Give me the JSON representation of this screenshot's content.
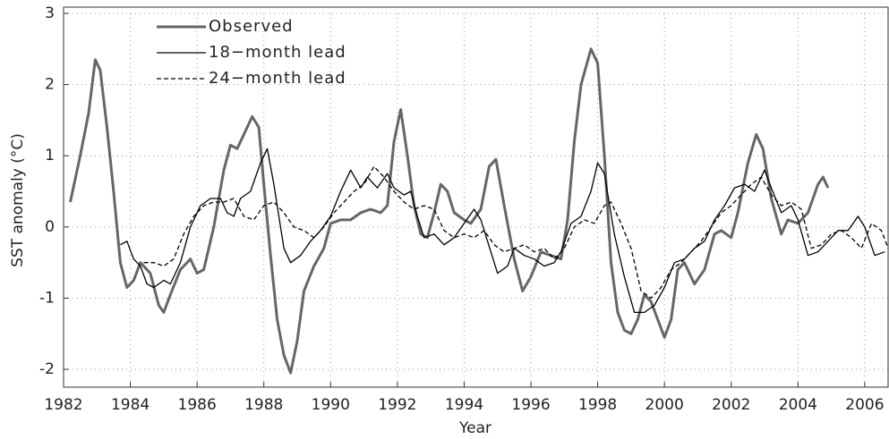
{
  "chart_data": {
    "type": "line",
    "x_label": "Year",
    "y_label": "SST anomaly (°C)",
    "xlim": [
      1982,
      2006.7
    ],
    "ylim": [
      -2.25,
      3
    ],
    "xticks": [
      1982,
      1984,
      1986,
      1988,
      1990,
      1992,
      1994,
      1996,
      1998,
      2000,
      2002,
      2004,
      2006
    ],
    "yticks": [
      -2,
      -1,
      0,
      1,
      2,
      3
    ],
    "grid": true,
    "legend": "upper left",
    "series": [
      {
        "name": "Observed",
        "color": "#666666",
        "width": 3,
        "dash": false,
        "x": [
          1982.2,
          1982.5,
          1982.75,
          1982.95,
          1983.1,
          1983.3,
          1983.5,
          1983.7,
          1983.9,
          1984.1,
          1984.3,
          1984.6,
          1984.85,
          1985.0,
          1985.2,
          1985.5,
          1985.8,
          1986.0,
          1986.2,
          1986.5,
          1986.8,
          1987.0,
          1987.2,
          1987.4,
          1987.65,
          1987.85,
          1988.0,
          1988.2,
          1988.4,
          1988.6,
          1988.8,
          1989.0,
          1989.2,
          1989.5,
          1989.8,
          1990.0,
          1990.3,
          1990.6,
          1990.9,
          1991.2,
          1991.5,
          1991.7,
          1991.9,
          1992.1,
          1992.3,
          1992.5,
          1992.7,
          1992.9,
          1993.1,
          1993.3,
          1993.5,
          1993.7,
          1994.0,
          1994.2,
          1994.5,
          1994.75,
          1994.95,
          1995.2,
          1995.5,
          1995.75,
          1996.0,
          1996.3,
          1996.6,
          1996.9,
          1997.1,
          1997.3,
          1997.5,
          1997.8,
          1998.0,
          1998.2,
          1998.4,
          1998.6,
          1998.8,
          1999.0,
          1999.2,
          1999.4,
          1999.6,
          1999.8,
          2000.0,
          2000.2,
          2000.4,
          2000.6,
          2000.9,
          2001.2,
          2001.5,
          2001.7,
          2002.0,
          2002.2,
          2002.5,
          2002.75,
          2002.95,
          2003.2,
          2003.5,
          2003.7,
          2004.0,
          2004.3,
          2004.6,
          2004.75,
          2004.9
        ],
        "values": [
          0.35,
          1.0,
          1.6,
          2.35,
          2.2,
          1.4,
          0.5,
          -0.5,
          -0.85,
          -0.75,
          -0.5,
          -0.65,
          -1.1,
          -1.2,
          -0.95,
          -0.6,
          -0.45,
          -0.65,
          -0.6,
          0.0,
          0.8,
          1.15,
          1.1,
          1.3,
          1.55,
          1.4,
          0.6,
          -0.4,
          -1.3,
          -1.8,
          -2.05,
          -1.6,
          -0.9,
          -0.55,
          -0.3,
          0.05,
          0.1,
          0.1,
          0.2,
          0.25,
          0.2,
          0.3,
          1.2,
          1.65,
          1.0,
          0.3,
          -0.1,
          -0.15,
          0.2,
          0.6,
          0.5,
          0.2,
          0.1,
          0.05,
          0.25,
          0.85,
          0.95,
          0.3,
          -0.45,
          -0.9,
          -0.7,
          -0.35,
          -0.4,
          -0.45,
          0.1,
          1.2,
          2.0,
          2.5,
          2.3,
          1.0,
          -0.5,
          -1.2,
          -1.45,
          -1.5,
          -1.3,
          -0.95,
          -1.05,
          -1.3,
          -1.55,
          -1.3,
          -0.6,
          -0.5,
          -0.8,
          -0.6,
          -0.1,
          -0.05,
          -0.15,
          0.2,
          0.9,
          1.3,
          1.1,
          0.4,
          -0.1,
          0.1,
          0.05,
          0.2,
          0.6,
          0.7,
          0.55
        ]
      },
      {
        "name": "18−month lead",
        "color": "#000000",
        "width": 1.3,
        "dash": false,
        "x": [
          1983.7,
          1983.9,
          1984.1,
          1984.3,
          1984.5,
          1984.7,
          1985.0,
          1985.2,
          1985.5,
          1985.8,
          1986.1,
          1986.4,
          1986.7,
          1986.9,
          1987.1,
          1987.3,
          1987.6,
          1987.9,
          1988.1,
          1988.3,
          1988.6,
          1988.8,
          1989.1,
          1989.4,
          1989.7,
          1990.0,
          1990.3,
          1990.6,
          1990.9,
          1991.1,
          1991.4,
          1991.7,
          1991.9,
          1992.2,
          1992.4,
          1992.6,
          1992.8,
          1993.1,
          1993.4,
          1993.7,
          1994.0,
          1994.3,
          1994.5,
          1994.8,
          1995.0,
          1995.3,
          1995.5,
          1995.8,
          1996.1,
          1996.4,
          1996.7,
          1996.9,
          1997.2,
          1997.5,
          1997.8,
          1998.0,
          1998.2,
          1998.5,
          1998.8,
          1999.1,
          1999.4,
          1999.7,
          2000.0,
          2000.3,
          2000.6,
          2000.9,
          2001.2,
          2001.5,
          2001.8,
          2002.1,
          2002.4,
          2002.7,
          2003.0,
          2003.2,
          2003.5,
          2003.8,
          2004.0,
          2004.3,
          2004.6,
          2004.9,
          2005.2,
          2005.5,
          2005.8,
          2006.0,
          2006.3,
          2006.6
        ],
        "values": [
          -0.25,
          -0.2,
          -0.45,
          -0.55,
          -0.8,
          -0.85,
          -0.75,
          -0.8,
          -0.5,
          0.0,
          0.3,
          0.4,
          0.4,
          0.2,
          0.15,
          0.4,
          0.5,
          0.9,
          1.1,
          0.6,
          -0.3,
          -0.5,
          -0.4,
          -0.2,
          -0.05,
          0.15,
          0.5,
          0.8,
          0.55,
          0.7,
          0.55,
          0.75,
          0.55,
          0.45,
          0.5,
          0.15,
          -0.15,
          -0.1,
          -0.25,
          -0.15,
          0.05,
          0.25,
          0.1,
          -0.35,
          -0.65,
          -0.55,
          -0.3,
          -0.4,
          -0.45,
          -0.55,
          -0.5,
          -0.35,
          0.05,
          0.15,
          0.5,
          0.9,
          0.75,
          -0.1,
          -0.7,
          -1.2,
          -1.2,
          -1.1,
          -0.85,
          -0.5,
          -0.45,
          -0.3,
          -0.2,
          0.1,
          0.3,
          0.55,
          0.6,
          0.5,
          0.8,
          0.55,
          0.2,
          0.3,
          0.1,
          -0.4,
          -0.35,
          -0.2,
          -0.05,
          -0.05,
          0.15,
          0.0,
          -0.4,
          -0.35
        ]
      },
      {
        "name": "24−month lead",
        "color": "#000000",
        "width": 1.3,
        "dash": true,
        "x": [
          1984.4,
          1984.7,
          1985.0,
          1985.3,
          1985.6,
          1985.9,
          1986.2,
          1986.5,
          1986.8,
          1987.1,
          1987.4,
          1987.7,
          1988.0,
          1988.3,
          1988.6,
          1988.9,
          1989.2,
          1989.5,
          1989.8,
          1990.1,
          1990.4,
          1990.7,
          1991.0,
          1991.3,
          1991.6,
          1991.9,
          1992.2,
          1992.5,
          1992.8,
          1993.1,
          1993.4,
          1993.7,
          1994.0,
          1994.3,
          1994.6,
          1994.9,
          1995.2,
          1995.5,
          1995.8,
          1996.1,
          1996.4,
          1996.7,
          1997.0,
          1997.3,
          1997.6,
          1997.9,
          1998.2,
          1998.4,
          1998.7,
          1999.0,
          1999.3,
          1999.6,
          1999.9,
          2000.2,
          2000.5,
          2000.8,
          2001.1,
          2001.4,
          2001.7,
          2002.0,
          2002.3,
          2002.6,
          2002.9,
          2003.2,
          2003.5,
          2003.8,
          2004.1,
          2004.4,
          2004.7,
          2005.0,
          2005.3,
          2005.6,
          2005.9,
          2006.2,
          2006.5,
          2006.7
        ],
        "values": [
          -0.5,
          -0.5,
          -0.55,
          -0.45,
          -0.1,
          0.15,
          0.3,
          0.35,
          0.35,
          0.4,
          0.15,
          0.1,
          0.3,
          0.35,
          0.2,
          0.0,
          -0.05,
          -0.15,
          0.0,
          0.2,
          0.35,
          0.5,
          0.6,
          0.85,
          0.7,
          0.5,
          0.35,
          0.25,
          0.3,
          0.25,
          -0.05,
          -0.15,
          -0.1,
          -0.15,
          -0.05,
          -0.25,
          -0.35,
          -0.3,
          -0.25,
          -0.35,
          -0.3,
          -0.45,
          -0.3,
          0.0,
          0.1,
          0.05,
          0.3,
          0.35,
          0.05,
          -0.3,
          -0.9,
          -1.0,
          -0.85,
          -0.6,
          -0.5,
          -0.35,
          -0.2,
          0.0,
          0.2,
          0.3,
          0.45,
          0.6,
          0.7,
          0.45,
          0.3,
          0.35,
          0.25,
          -0.3,
          -0.25,
          -0.1,
          -0.05,
          -0.15,
          -0.3,
          0.05,
          -0.05,
          -0.3
        ]
      }
    ]
  }
}
